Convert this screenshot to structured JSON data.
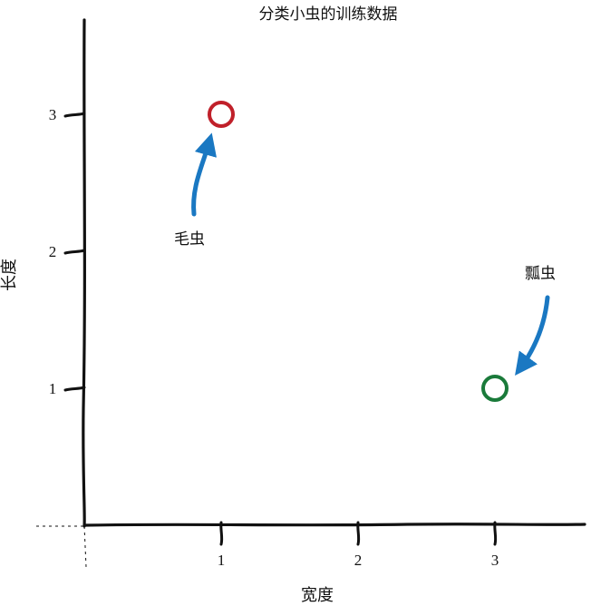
{
  "chart_data": {
    "type": "scatter",
    "title": "分类小虫的训练数据",
    "xlabel": "宽度",
    "ylabel": "长度",
    "xticks": [
      "1",
      "2",
      "3"
    ],
    "yticks": [
      "1",
      "2",
      "3"
    ],
    "xlim": [
      0,
      3.6
    ],
    "ylim": [
      0,
      3.6
    ],
    "grid": false,
    "points": [
      {
        "x": 1,
        "y": 3,
        "label": "毛虫",
        "color": "#c0202a"
      },
      {
        "x": 3,
        "y": 1,
        "label": "瓢虫",
        "color": "#1a7a3a"
      }
    ],
    "arrow_color": "#1a78c2",
    "axis_color": "#111111"
  }
}
